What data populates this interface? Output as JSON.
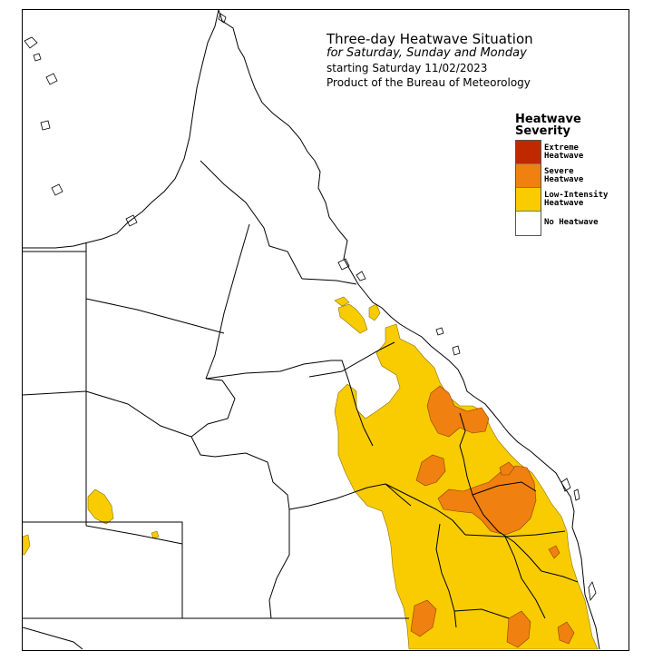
{
  "title": {
    "line1": "Three-day Heatwave Situation",
    "line2": "for Saturday, Sunday and Monday",
    "line3": "starting Saturday 11/02/2023",
    "line4": "Product of the Bureau of Meteorology"
  },
  "legend": {
    "title": "Heatwave\nSeverity",
    "items": [
      {
        "label": "Extreme\nHeatwave",
        "color": "#c02800"
      },
      {
        "label": "Severe\nHeatwave",
        "color": "#f08010"
      },
      {
        "label": "Low-Intensity\nHeatwave",
        "color": "#f8cc00"
      },
      {
        "label": "No Heatwave",
        "color": "#ffffff"
      }
    ]
  },
  "colors": {
    "land_outline": "#000000",
    "severe": "#f08010",
    "low": "#f8cc00"
  }
}
